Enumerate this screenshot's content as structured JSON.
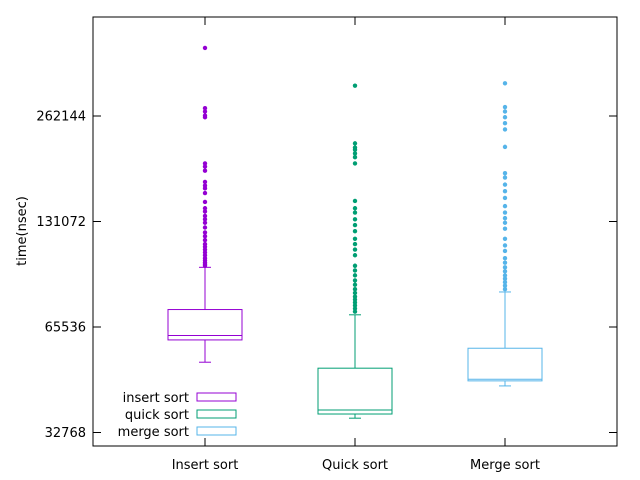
{
  "chart_data": {
    "type": "box",
    "title": "",
    "xlabel": "",
    "ylabel": "time(nsec)",
    "y_scale": "log2",
    "ylim": [
      30000,
      450000
    ],
    "y_ticks": [
      32768,
      65536,
      131072,
      262144
    ],
    "y_tick_labels": [
      "32768",
      "65536",
      "131072",
      "262144"
    ],
    "categories": [
      "Insert sort",
      "Quick sort",
      "Merge sort"
    ],
    "grid": false,
    "legend_position": "bottom-left",
    "series": [
      {
        "name": "insert sort",
        "color": "#9400d3",
        "whisker_low": 52000,
        "q1": 60200,
        "median": 62000,
        "q3": 73500,
        "whisker_high": 97000,
        "outliers": [
          98000,
          99000,
          100000,
          101500,
          103000,
          105000,
          107000,
          109000,
          111000,
          113000,
          116000,
          119000,
          122000,
          126000,
          130000,
          133000,
          136000,
          140000,
          143000,
          149000,
          158000,
          163000,
          166000,
          170000,
          183000,
          188000,
          192000,
          260000,
          263000,
          270000,
          276000,
          410000
        ]
      },
      {
        "name": "quick sort",
        "color": "#009e73",
        "whisker_low": 36000,
        "q1": 37000,
        "median": 38000,
        "q3": 50000,
        "whisker_high": 71000,
        "outliers": [
          72500,
          74000,
          75500,
          77000,
          78500,
          80000,
          82000,
          84000,
          86500,
          89000,
          92000,
          95000,
          98000,
          105000,
          109000,
          113000,
          117000,
          123000,
          128000,
          133000,
          139000,
          143000,
          150000,
          192000,
          200000,
          205000,
          210000,
          213000,
          219000,
          320000
        ]
      },
      {
        "name": "merge sort",
        "color": "#56b4e9",
        "whisker_low": 44500,
        "q1": 46000,
        "median": 46500,
        "q3": 57000,
        "whisker_high": 82500,
        "outliers": [
          84000,
          86000,
          88000,
          90000,
          92000,
          94500,
          97000,
          100000,
          103000,
          108000,
          112000,
          117000,
          125000,
          130000,
          134000,
          139000,
          145000,
          153000,
          160000,
          167000,
          175000,
          180000,
          214000,
          240000,
          250000,
          260000,
          270000,
          278000,
          325000
        ]
      }
    ]
  }
}
